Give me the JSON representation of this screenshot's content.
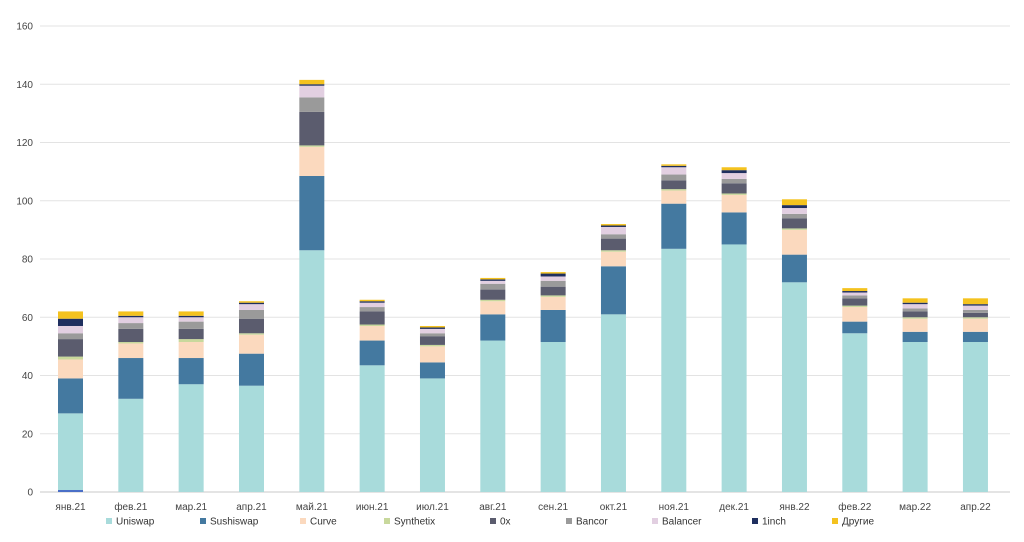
{
  "chart_data": {
    "type": "bar",
    "stacked": true,
    "title": "",
    "xlabel": "",
    "ylabel": "",
    "ylim": [
      0,
      160
    ],
    "yticks": [
      0,
      20,
      40,
      60,
      80,
      100,
      120,
      140,
      160
    ],
    "grid": true,
    "legend_position": "bottom",
    "categories": [
      "янв.21",
      "фев.21",
      "мар.21",
      "апр.21",
      "май.21",
      "июн.21",
      "июл.21",
      "авг.21",
      "сен.21",
      "окт.21",
      "ноя.21",
      "дек.21",
      "янв.22",
      "фев.22",
      "мар.22",
      "апр.22"
    ],
    "series": [
      {
        "name": "Uniswap",
        "color": "#a8dbdb",
        "values": [
          27,
          32,
          37,
          36.5,
          83,
          43.5,
          39,
          52,
          51.5,
          61,
          83.5,
          85,
          72,
          54.5,
          51.5,
          51.5
        ]
      },
      {
        "name": "Sushiswap",
        "color": "#4479a0",
        "values": [
          12,
          14,
          9,
          11,
          25.5,
          8.5,
          5.5,
          9,
          11,
          16.5,
          15.5,
          11,
          9.5,
          4,
          3.5,
          3.5
        ]
      },
      {
        "name": "Curve",
        "color": "#fbd9be",
        "values": [
          6.5,
          5,
          5.5,
          6.5,
          10,
          5,
          5.5,
          4.5,
          4.5,
          5,
          4.5,
          6,
          8.5,
          5,
          4.5,
          4.5
        ]
      },
      {
        "name": "Synthetix",
        "color": "#c8d89c",
        "values": [
          1,
          0.5,
          1,
          0.5,
          0.5,
          0.5,
          0.5,
          0.5,
          0.5,
          0.5,
          0.5,
          0.5,
          0.5,
          0.5,
          0.5,
          0.5
        ]
      },
      {
        "name": "0x",
        "color": "#5b5c6e",
        "values": [
          6,
          4.5,
          3.5,
          5,
          11.5,
          4.5,
          3,
          3.5,
          3,
          4,
          3,
          3.5,
          3.5,
          2.5,
          2,
          1.5
        ]
      },
      {
        "name": "Bancor",
        "color": "#9a9a9a",
        "values": [
          2,
          2,
          2.5,
          3,
          5,
          1.5,
          1,
          2,
          2,
          1.5,
          2,
          1.5,
          1.5,
          1,
          1,
          1
        ]
      },
      {
        "name": "Balancer",
        "color": "#e2cfe1",
        "values": [
          2.5,
          2,
          1.5,
          2,
          4,
          1.5,
          1.5,
          1,
          1.5,
          2.5,
          2.5,
          2,
          2,
          1,
          1.5,
          1.5
        ]
      },
      {
        "name": "1inch",
        "color": "#1f2f5f",
        "values": [
          2.5,
          0.5,
          0.5,
          0.5,
          0.5,
          0.5,
          0.5,
          0.5,
          1,
          0.5,
          0.5,
          1,
          1,
          0.5,
          0.5,
          0.5
        ]
      },
      {
        "name": "Другие",
        "color": "#f4c21f",
        "values": [
          2.5,
          1.5,
          1.5,
          0.5,
          1.5,
          0.5,
          0.5,
          0.5,
          0.5,
          0.5,
          0.5,
          1,
          2,
          1,
          1.5,
          2
        ]
      }
    ]
  }
}
